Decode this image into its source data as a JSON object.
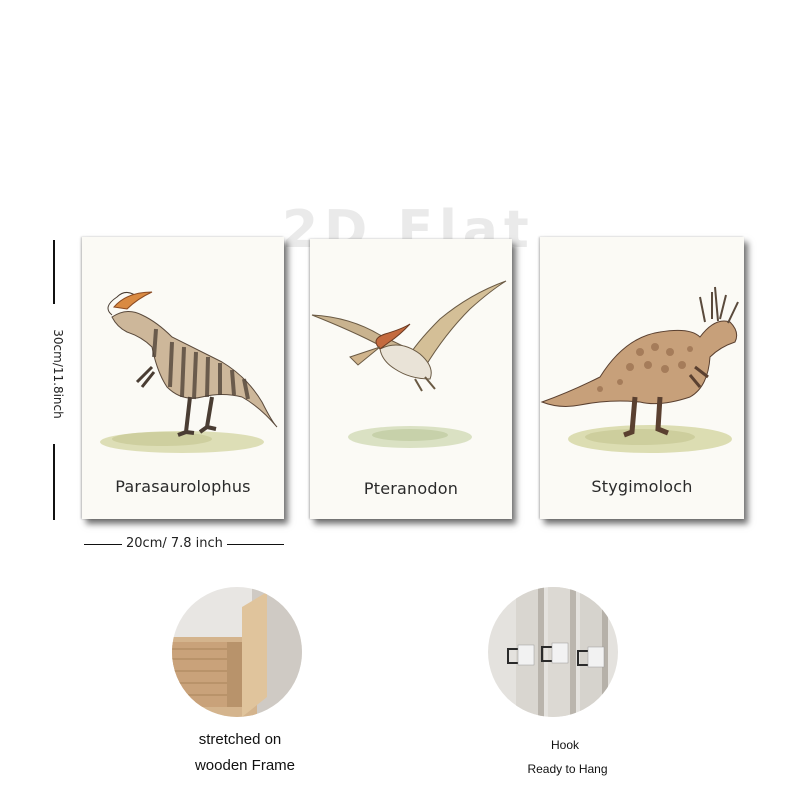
{
  "watermark": {
    "text": "2D Flat"
  },
  "prints": [
    {
      "name": "Parasaurolophus"
    },
    {
      "name": "Pteranodon"
    },
    {
      "name": "Stygimoloch"
    }
  ],
  "dimensions": {
    "height_label": "30cm/11.8inch",
    "width_label": "20cm/ 7.8 inch"
  },
  "features": [
    {
      "icon": "wooden-frame-corner",
      "caption_line1": "stretched on",
      "caption_line2": "wooden Frame"
    },
    {
      "icon": "hook-closeup",
      "caption_line1": "Hook",
      "caption_line2": "Ready to Hang"
    }
  ]
}
